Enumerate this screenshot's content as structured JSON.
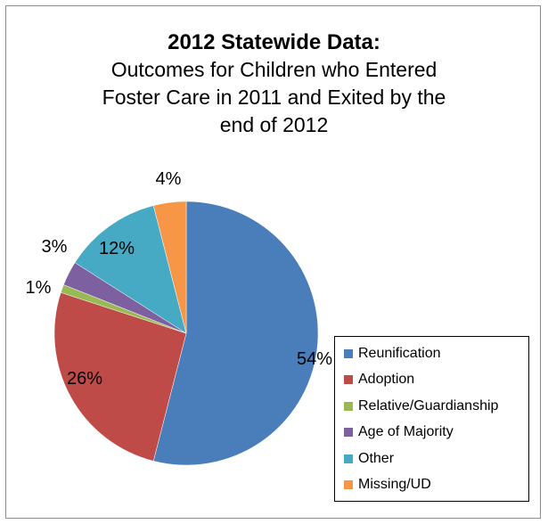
{
  "chart_data": {
    "type": "pie",
    "title": "2012 Statewide Data:",
    "subtitle": "Outcomes for Children who Entered Foster Care in 2011 and Exited by the end of 2012",
    "labels": [
      "Reunification",
      "Adoption",
      "Relative/Guardianship",
      "Age of Majority",
      "Other",
      "Missing/UD"
    ],
    "values": [
      54,
      26,
      1,
      3,
      12,
      4
    ],
    "data_labels": [
      "54%",
      "26%",
      "1%",
      "3%",
      "12%",
      "4%"
    ],
    "colors": [
      "#4a7ebb",
      "#be4b48",
      "#98b954",
      "#7d60a0",
      "#46aac5",
      "#f79646"
    ],
    "legend_position": "right"
  }
}
